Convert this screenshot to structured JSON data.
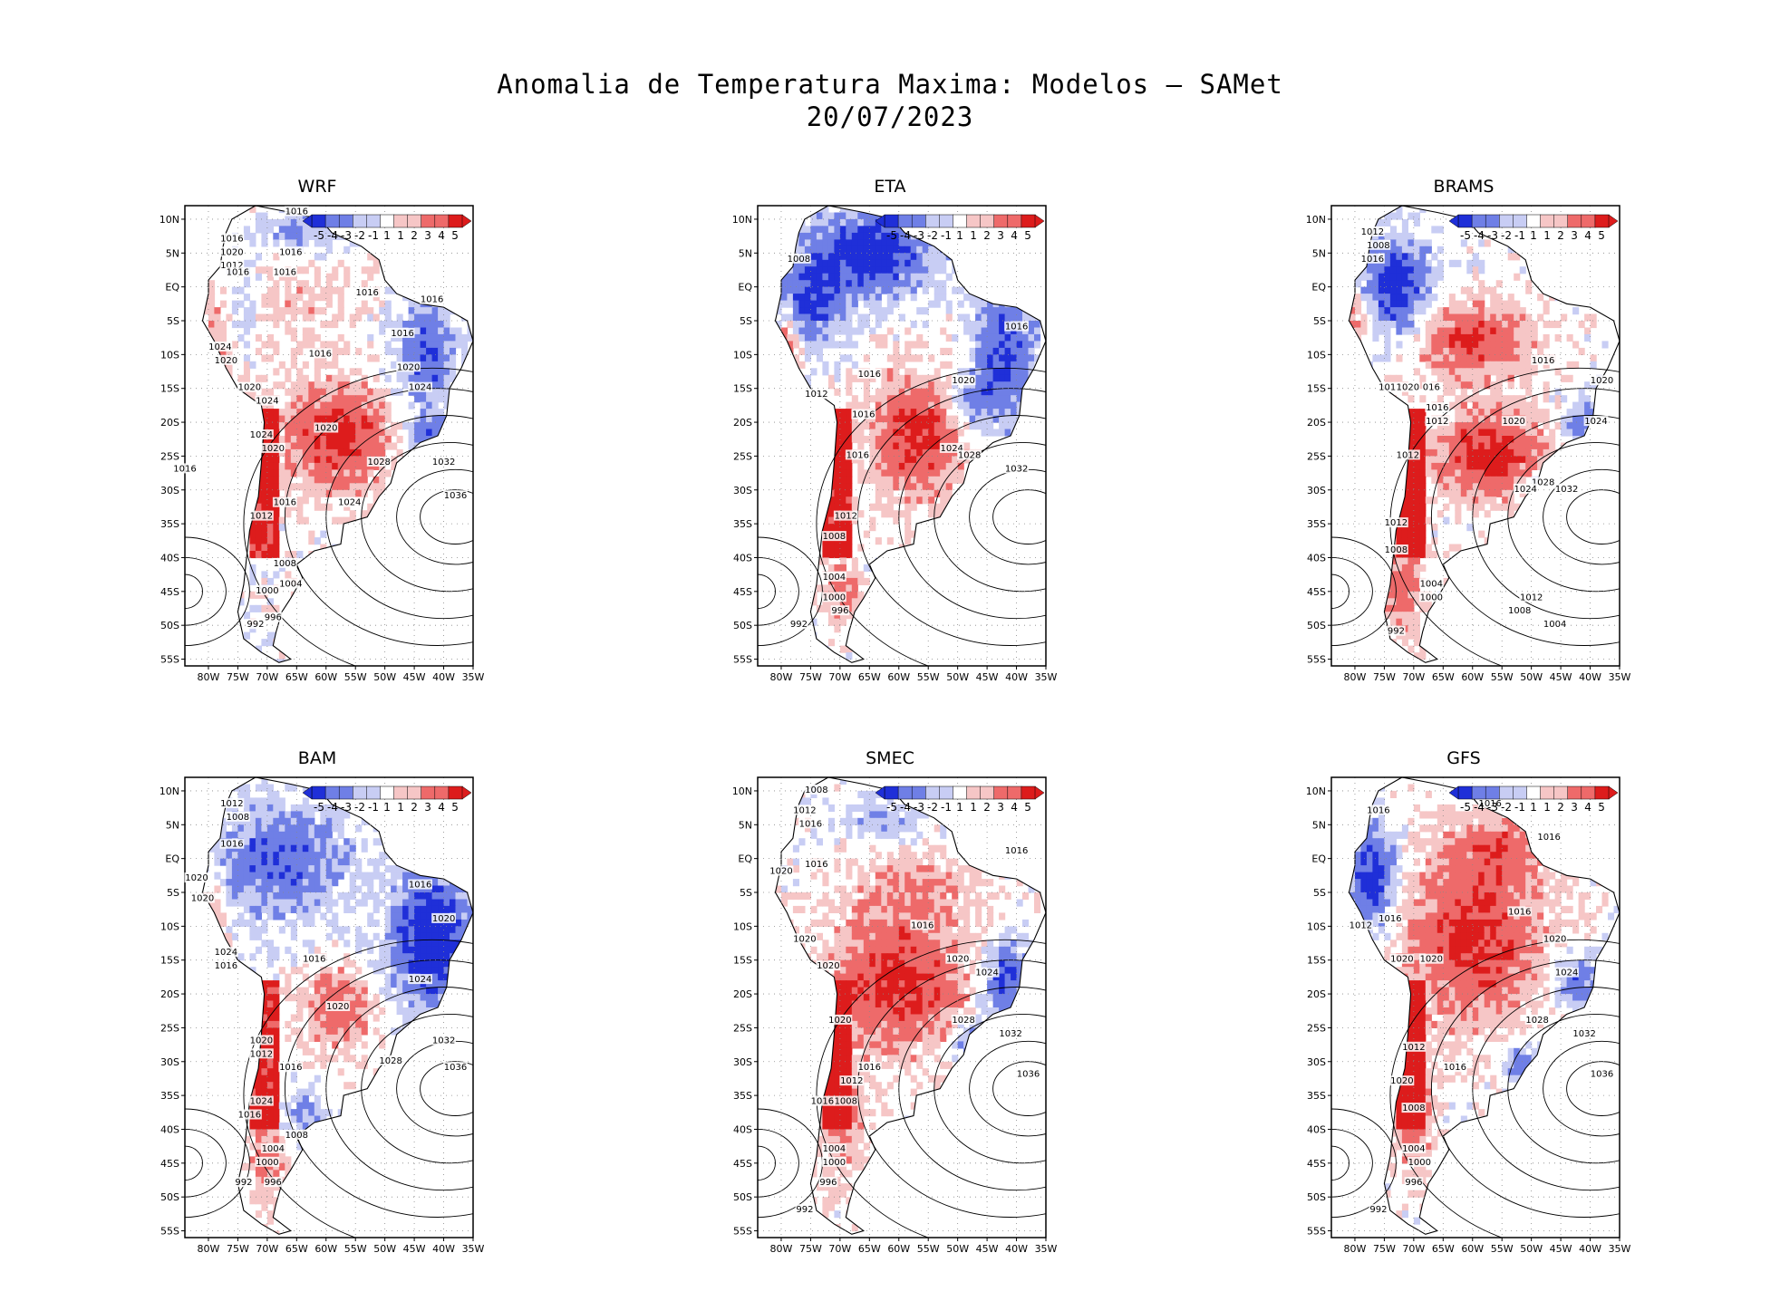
{
  "title": {
    "line1": "Anomalia de Temperatura Maxima: Modelos — SAMet",
    "line2": "20/07/2023"
  },
  "colors": {
    "cold_strong": "#1f2fd8",
    "cold_mid": "#6f7fe6",
    "cold_light": "#c8cdf4",
    "neutral": "#ffffff",
    "warm_light": "#f6c6c6",
    "warm_mid": "#ee6a6a",
    "warm_strong": "#dd1c1c",
    "contour": "#000000",
    "grid": "#888888"
  },
  "colorbar": {
    "labels": [
      "-5",
      "-4",
      "-3",
      "-2",
      "-1",
      "1",
      "1",
      "2",
      "3",
      "4",
      "5"
    ]
  },
  "axes": {
    "lat_labels": [
      "10N",
      "5N",
      "EQ",
      "5S",
      "10S",
      "15S",
      "20S",
      "25S",
      "30S",
      "35S",
      "40S",
      "45S",
      "50S",
      "55S"
    ],
    "lon_labels": [
      "80W",
      "75W",
      "70W",
      "65W",
      "60W",
      "55W",
      "50W",
      "45W",
      "40W",
      "35W"
    ]
  },
  "panels": [
    {
      "name": "WRF",
      "anomaly": "mostly warm central continent, cold NE Brazil coast",
      "pressure_labels": [
        {
          "text": "1016",
          "lon": -65,
          "lat": 11
        },
        {
          "text": "1016",
          "lon": -76,
          "lat": 7
        },
        {
          "text": "1020",
          "lon": -76,
          "lat": 5
        },
        {
          "text": "1012",
          "lon": -76,
          "lat": 3
        },
        {
          "text": "1016",
          "lon": -75,
          "lat": 2
        },
        {
          "text": "1016",
          "lon": -66,
          "lat": 5
        },
        {
          "text": "1016",
          "lon": -67,
          "lat": 2
        },
        {
          "text": "1016",
          "lon": -53,
          "lat": -1
        },
        {
          "text": "1016",
          "lon": -42,
          "lat": -2
        },
        {
          "text": "1016",
          "lon": -47,
          "lat": -7
        },
        {
          "text": "1024",
          "lon": -78,
          "lat": -9
        },
        {
          "text": "1020",
          "lon": -77,
          "lat": -11
        },
        {
          "text": "1016",
          "lon": -61,
          "lat": -10
        },
        {
          "text": "1020",
          "lon": -46,
          "lat": -12
        },
        {
          "text": "1024",
          "lon": -44,
          "lat": -15
        },
        {
          "text": "1020",
          "lon": -73,
          "lat": -15
        },
        {
          "text": "1024",
          "lon": -70,
          "lat": -17
        },
        {
          "text": "1024",
          "lon": -71,
          "lat": -22
        },
        {
          "text": "1020",
          "lon": -69,
          "lat": -24
        },
        {
          "text": "1020",
          "lon": -60,
          "lat": -21
        },
        {
          "text": "1028",
          "lon": -51,
          "lat": -26
        },
        {
          "text": "1032",
          "lon": -40,
          "lat": -26
        },
        {
          "text": "1036",
          "lon": -38,
          "lat": -31
        },
        {
          "text": "1016",
          "lon": -84,
          "lat": -27
        },
        {
          "text": "1016",
          "lon": -67,
          "lat": -32
        },
        {
          "text": "1024",
          "lon": -56,
          "lat": -32
        },
        {
          "text": "1012",
          "lon": -71,
          "lat": -34
        },
        {
          "text": "1008",
          "lon": -67,
          "lat": -41
        },
        {
          "text": "1004",
          "lon": -66,
          "lat": -44
        },
        {
          "text": "1000",
          "lon": -70,
          "lat": -45
        },
        {
          "text": "996",
          "lon": -69,
          "lat": -49
        },
        {
          "text": "992",
          "lon": -72,
          "lat": -50
        }
      ]
    },
    {
      "name": "ETA",
      "anomaly": "cold north and NE coast, warm center-south and Andes",
      "pressure_labels": [
        {
          "text": "1008",
          "lon": -77,
          "lat": 4
        },
        {
          "text": "1016",
          "lon": -40,
          "lat": -6
        },
        {
          "text": "1016",
          "lon": -65,
          "lat": -13
        },
        {
          "text": "1020",
          "lon": -49,
          "lat": -14
        },
        {
          "text": "1012",
          "lon": -74,
          "lat": -16
        },
        {
          "text": "1016",
          "lon": -66,
          "lat": -19
        },
        {
          "text": "1024",
          "lon": -51,
          "lat": -24
        },
        {
          "text": "1028",
          "lon": -48,
          "lat": -25
        },
        {
          "text": "1016",
          "lon": -67,
          "lat": -25
        },
        {
          "text": "1032",
          "lon": -40,
          "lat": -27
        },
        {
          "text": "1012",
          "lon": -69,
          "lat": -34
        },
        {
          "text": "1008",
          "lon": -71,
          "lat": -37
        },
        {
          "text": "1004",
          "lon": -71,
          "lat": -43
        },
        {
          "text": "1000",
          "lon": -71,
          "lat": -46
        },
        {
          "text": "996",
          "lon": -70,
          "lat": -48
        },
        {
          "text": "992",
          "lon": -77,
          "lat": -50
        }
      ]
    },
    {
      "name": "BRAMS",
      "anomaly": "warm interior and Andes, cold NW Amazon and SE coast",
      "pressure_labels": [
        {
          "text": "1012",
          "lon": -77,
          "lat": 8
        },
        {
          "text": "1008",
          "lon": -76,
          "lat": 6
        },
        {
          "text": "1016",
          "lon": -77,
          "lat": 4
        },
        {
          "text": "1016",
          "lon": -48,
          "lat": -11
        },
        {
          "text": "1020",
          "lon": -38,
          "lat": -14
        },
        {
          "text": "1012",
          "lon": -74,
          "lat": -15
        },
        {
          "text": "1020",
          "lon": -71,
          "lat": -15
        },
        {
          "text": "016",
          "lon": -67,
          "lat": -15
        },
        {
          "text": "1016",
          "lon": -66,
          "lat": -18
        },
        {
          "text": "1012",
          "lon": -66,
          "lat": -20
        },
        {
          "text": "1020",
          "lon": -53,
          "lat": -20
        },
        {
          "text": "1024",
          "lon": -39,
          "lat": -20
        },
        {
          "text": "1012",
          "lon": -71,
          "lat": -25
        },
        {
          "text": "1028",
          "lon": -48,
          "lat": -29
        },
        {
          "text": "1024",
          "lon": -51,
          "lat": -30
        },
        {
          "text": "1032",
          "lon": -44,
          "lat": -30
        },
        {
          "text": "1012",
          "lon": -73,
          "lat": -35
        },
        {
          "text": "1008",
          "lon": -73,
          "lat": -39
        },
        {
          "text": "1004",
          "lon": -67,
          "lat": -44
        },
        {
          "text": "1000",
          "lon": -67,
          "lat": -46
        },
        {
          "text": "1012",
          "lon": -50,
          "lat": -46
        },
        {
          "text": "1008",
          "lon": -52,
          "lat": -48
        },
        {
          "text": "1004",
          "lon": -46,
          "lat": -50
        },
        {
          "text": "992",
          "lon": -73,
          "lat": -51
        }
      ]
    },
    {
      "name": "BAM",
      "anomaly": "cold north/NE Brazil, warm Andes and central strip",
      "pressure_labels": [
        {
          "text": "1012",
          "lon": -76,
          "lat": 8
        },
        {
          "text": "1008",
          "lon": -75,
          "lat": 6
        },
        {
          "text": "1016",
          "lon": -76,
          "lat": 2
        },
        {
          "text": "1020",
          "lon": -82,
          "lat": -3
        },
        {
          "text": "1020",
          "lon": -81,
          "lat": -6
        },
        {
          "text": "1016",
          "lon": -44,
          "lat": -4
        },
        {
          "text": "1020",
          "lon": -40,
          "lat": -9
        },
        {
          "text": "1024",
          "lon": -77,
          "lat": -14
        },
        {
          "text": "1016",
          "lon": -77,
          "lat": -16
        },
        {
          "text": "1016",
          "lon": -62,
          "lat": -15
        },
        {
          "text": "1024",
          "lon": -44,
          "lat": -18
        },
        {
          "text": "1020",
          "lon": -58,
          "lat": -22
        },
        {
          "text": "1020",
          "lon": -71,
          "lat": -27
        },
        {
          "text": "1012",
          "lon": -71,
          "lat": -29
        },
        {
          "text": "1016",
          "lon": -66,
          "lat": -31
        },
        {
          "text": "1028",
          "lon": -49,
          "lat": -30
        },
        {
          "text": "1032",
          "lon": -40,
          "lat": -27
        },
        {
          "text": "1036",
          "lon": -38,
          "lat": -31
        },
        {
          "text": "1024",
          "lon": -71,
          "lat": -36
        },
        {
          "text": "1016",
          "lon": -73,
          "lat": -38
        },
        {
          "text": "1008",
          "lon": -65,
          "lat": -41
        },
        {
          "text": "1004",
          "lon": -69,
          "lat": -43
        },
        {
          "text": "1000",
          "lon": -70,
          "lat": -45
        },
        {
          "text": "996",
          "lon": -69,
          "lat": -48
        },
        {
          "text": "992",
          "lon": -74,
          "lat": -48
        }
      ]
    },
    {
      "name": "SMEC",
      "anomaly": "warm central continent and Andes, cold SE Brazil and Amazon north",
      "pressure_labels": [
        {
          "text": "1008",
          "lon": -74,
          "lat": 10
        },
        {
          "text": "1012",
          "lon": -76,
          "lat": 7
        },
        {
          "text": "1016",
          "lon": -75,
          "lat": 5
        },
        {
          "text": "1016",
          "lon": -40,
          "lat": 1
        },
        {
          "text": "1020",
          "lon": -80,
          "lat": -2
        },
        {
          "text": "1016",
          "lon": -74,
          "lat": -1
        },
        {
          "text": "1016",
          "lon": -56,
          "lat": -10
        },
        {
          "text": "1020",
          "lon": -76,
          "lat": -12
        },
        {
          "text": "1020",
          "lon": -72,
          "lat": -16
        },
        {
          "text": "1020",
          "lon": -50,
          "lat": -15
        },
        {
          "text": "1024",
          "lon": -45,
          "lat": -17
        },
        {
          "text": "1020",
          "lon": -70,
          "lat": -24
        },
        {
          "text": "1028",
          "lon": -49,
          "lat": -24
        },
        {
          "text": "1032",
          "lon": -41,
          "lat": -26
        },
        {
          "text": "1016",
          "lon": -65,
          "lat": -31
        },
        {
          "text": "1036",
          "lon": -38,
          "lat": -32
        },
        {
          "text": "1012",
          "lon": -68,
          "lat": -33
        },
        {
          "text": "1016",
          "lon": -73,
          "lat": -36
        },
        {
          "text": "1008",
          "lon": -69,
          "lat": -36
        },
        {
          "text": "1004",
          "lon": -71,
          "lat": -43
        },
        {
          "text": "1000",
          "lon": -71,
          "lat": -45
        },
        {
          "text": "996",
          "lon": -72,
          "lat": -48
        },
        {
          "text": "992",
          "lon": -76,
          "lat": -52
        }
      ]
    },
    {
      "name": "GFS",
      "anomaly": "warm central continent, cold Pacific coast north and SE coast",
      "pressure_labels": [
        {
          "text": "1016",
          "lon": -76,
          "lat": 7
        },
        {
          "text": "1016",
          "lon": -57,
          "lat": 8
        },
        {
          "text": "1016",
          "lon": -47,
          "lat": 3
        },
        {
          "text": "1016",
          "lon": -74,
          "lat": -9
        },
        {
          "text": "1012",
          "lon": -79,
          "lat": -10
        },
        {
          "text": "1016",
          "lon": -52,
          "lat": -8
        },
        {
          "text": "1020",
          "lon": -46,
          "lat": -12
        },
        {
          "text": "1020",
          "lon": -72,
          "lat": -15
        },
        {
          "text": "1020",
          "lon": -67,
          "lat": -15
        },
        {
          "text": "1024",
          "lon": -44,
          "lat": -17
        },
        {
          "text": "1028",
          "lon": -49,
          "lat": -24
        },
        {
          "text": "1032",
          "lon": -41,
          "lat": -26
        },
        {
          "text": "1036",
          "lon": -38,
          "lat": -32
        },
        {
          "text": "1012",
          "lon": -70,
          "lat": -28
        },
        {
          "text": "1016",
          "lon": -63,
          "lat": -31
        },
        {
          "text": "1020",
          "lon": -72,
          "lat": -33
        },
        {
          "text": "1008",
          "lon": -70,
          "lat": -37
        },
        {
          "text": "1004",
          "lon": -70,
          "lat": -43
        },
        {
          "text": "1000",
          "lon": -69,
          "lat": -45
        },
        {
          "text": "996",
          "lon": -70,
          "lat": -48
        },
        {
          "text": "992",
          "lon": -76,
          "lat": -52
        }
      ]
    }
  ]
}
